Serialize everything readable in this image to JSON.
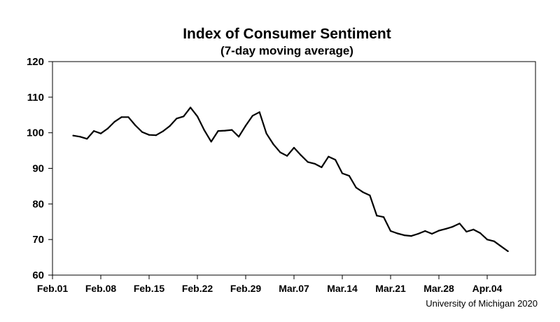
{
  "chart_data": {
    "type": "line",
    "title": "Index of Consumer Sentiment",
    "subtitle": "(7-day moving average)",
    "xlabel": "",
    "ylabel": "",
    "ylim": [
      60,
      120
    ],
    "yticks": [
      60,
      70,
      80,
      90,
      100,
      110,
      120
    ],
    "xlim": [
      "2020-02-01",
      "2020-04-11"
    ],
    "xticks": [
      {
        "date": "2020-02-01",
        "label": "Feb.01"
      },
      {
        "date": "2020-02-08",
        "label": "Feb.08"
      },
      {
        "date": "2020-02-15",
        "label": "Feb.15"
      },
      {
        "date": "2020-02-22",
        "label": "Feb.22"
      },
      {
        "date": "2020-02-29",
        "label": "Feb.29"
      },
      {
        "date": "2020-03-07",
        "label": "Mar.07"
      },
      {
        "date": "2020-03-14",
        "label": "Mar.14"
      },
      {
        "date": "2020-03-21",
        "label": "Mar.21"
      },
      {
        "date": "2020-03-28",
        "label": "Mar.28"
      },
      {
        "date": "2020-04-04",
        "label": "Apr.04"
      }
    ],
    "grid": false,
    "legend": false,
    "series": [
      {
        "color": "#000000",
        "points": [
          [
            "2020-02-04",
            99.2
          ],
          [
            "2020-02-05",
            98.9
          ],
          [
            "2020-02-06",
            98.3
          ],
          [
            "2020-02-07",
            100.5
          ],
          [
            "2020-02-08",
            99.8
          ],
          [
            "2020-02-09",
            101.2
          ],
          [
            "2020-02-10",
            103.1
          ],
          [
            "2020-02-11",
            104.4
          ],
          [
            "2020-02-12",
            104.4
          ],
          [
            "2020-02-13",
            102.1
          ],
          [
            "2020-02-14",
            100.2
          ],
          [
            "2020-02-15",
            99.4
          ],
          [
            "2020-02-16",
            99.3
          ],
          [
            "2020-02-17",
            100.4
          ],
          [
            "2020-02-18",
            101.9
          ],
          [
            "2020-02-19",
            104.0
          ],
          [
            "2020-02-20",
            104.6
          ],
          [
            "2020-02-21",
            107.1
          ],
          [
            "2020-02-22",
            104.6
          ],
          [
            "2020-02-23",
            100.7
          ],
          [
            "2020-02-24",
            97.5
          ],
          [
            "2020-02-25",
            100.5
          ],
          [
            "2020-02-26",
            100.6
          ],
          [
            "2020-02-27",
            100.8
          ],
          [
            "2020-02-28",
            98.9
          ],
          [
            "2020-02-29",
            102.0
          ],
          [
            "2020-03-01",
            104.8
          ],
          [
            "2020-03-02",
            105.8
          ],
          [
            "2020-03-03",
            99.8
          ],
          [
            "2020-03-04",
            96.8
          ],
          [
            "2020-03-05",
            94.5
          ],
          [
            "2020-03-06",
            93.5
          ],
          [
            "2020-03-07",
            95.8
          ],
          [
            "2020-03-08",
            93.7
          ],
          [
            "2020-03-09",
            91.8
          ],
          [
            "2020-03-10",
            91.3
          ],
          [
            "2020-03-11",
            90.3
          ],
          [
            "2020-03-12",
            93.3
          ],
          [
            "2020-03-13",
            92.4
          ],
          [
            "2020-03-14",
            88.6
          ],
          [
            "2020-03-15",
            87.9
          ],
          [
            "2020-03-16",
            84.6
          ],
          [
            "2020-03-17",
            83.3
          ],
          [
            "2020-03-18",
            82.4
          ],
          [
            "2020-03-19",
            76.7
          ],
          [
            "2020-03-20",
            76.3
          ],
          [
            "2020-03-21",
            72.4
          ],
          [
            "2020-03-22",
            71.7
          ],
          [
            "2020-03-23",
            71.2
          ],
          [
            "2020-03-24",
            71.0
          ],
          [
            "2020-03-25",
            71.6
          ],
          [
            "2020-03-26",
            72.4
          ],
          [
            "2020-03-27",
            71.6
          ],
          [
            "2020-03-28",
            72.5
          ],
          [
            "2020-03-29",
            73.0
          ],
          [
            "2020-03-30",
            73.6
          ],
          [
            "2020-03-31",
            74.5
          ],
          [
            "2020-04-01",
            72.2
          ],
          [
            "2020-04-02",
            72.8
          ],
          [
            "2020-04-03",
            71.8
          ],
          [
            "2020-04-04",
            70.0
          ],
          [
            "2020-04-05",
            69.5
          ],
          [
            "2020-04-06",
            68.1
          ],
          [
            "2020-04-07",
            66.7
          ]
        ]
      }
    ]
  },
  "source_note": "University of Michigan 2020"
}
